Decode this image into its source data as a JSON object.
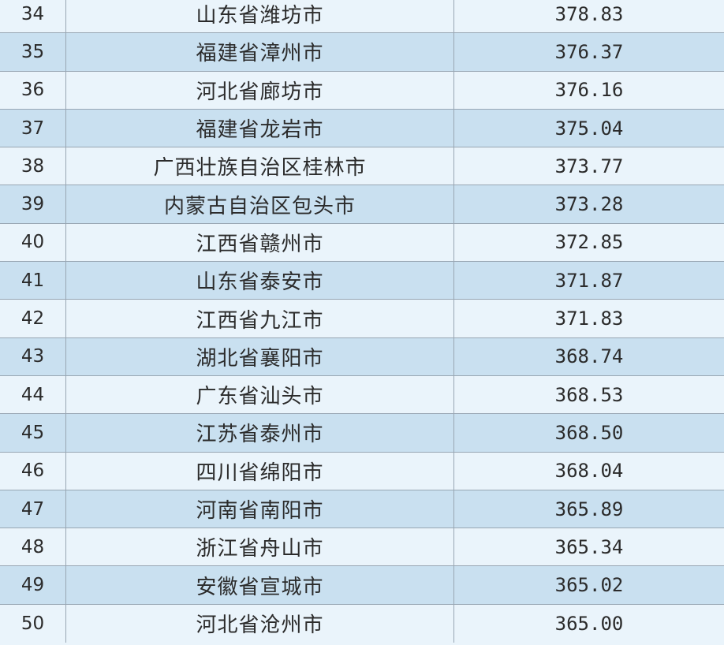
{
  "table": {
    "rows": [
      {
        "rank": "34",
        "city": "山东省潍坊市",
        "value": "378.83"
      },
      {
        "rank": "35",
        "city": "福建省漳州市",
        "value": "376.37"
      },
      {
        "rank": "36",
        "city": "河北省廊坊市",
        "value": "376.16"
      },
      {
        "rank": "37",
        "city": "福建省龙岩市",
        "value": "375.04"
      },
      {
        "rank": "38",
        "city": "广西壮族自治区桂林市",
        "value": "373.77"
      },
      {
        "rank": "39",
        "city": "内蒙古自治区包头市",
        "value": "373.28"
      },
      {
        "rank": "40",
        "city": "江西省赣州市",
        "value": "372.85"
      },
      {
        "rank": "41",
        "city": "山东省泰安市",
        "value": "371.87"
      },
      {
        "rank": "42",
        "city": "江西省九江市",
        "value": "371.83"
      },
      {
        "rank": "43",
        "city": "湖北省襄阳市",
        "value": "368.74"
      },
      {
        "rank": "44",
        "city": "广东省汕头市",
        "value": "368.53"
      },
      {
        "rank": "45",
        "city": "江苏省泰州市",
        "value": "368.50"
      },
      {
        "rank": "46",
        "city": "四川省绵阳市",
        "value": "368.04"
      },
      {
        "rank": "47",
        "city": "河南省南阳市",
        "value": "365.89"
      },
      {
        "rank": "48",
        "city": "浙江省舟山市",
        "value": "365.34"
      },
      {
        "rank": "49",
        "city": "安徽省宣城市",
        "value": "365.02"
      },
      {
        "rank": "50",
        "city": "河北省沧州市",
        "value": "365.00"
      }
    ]
  }
}
